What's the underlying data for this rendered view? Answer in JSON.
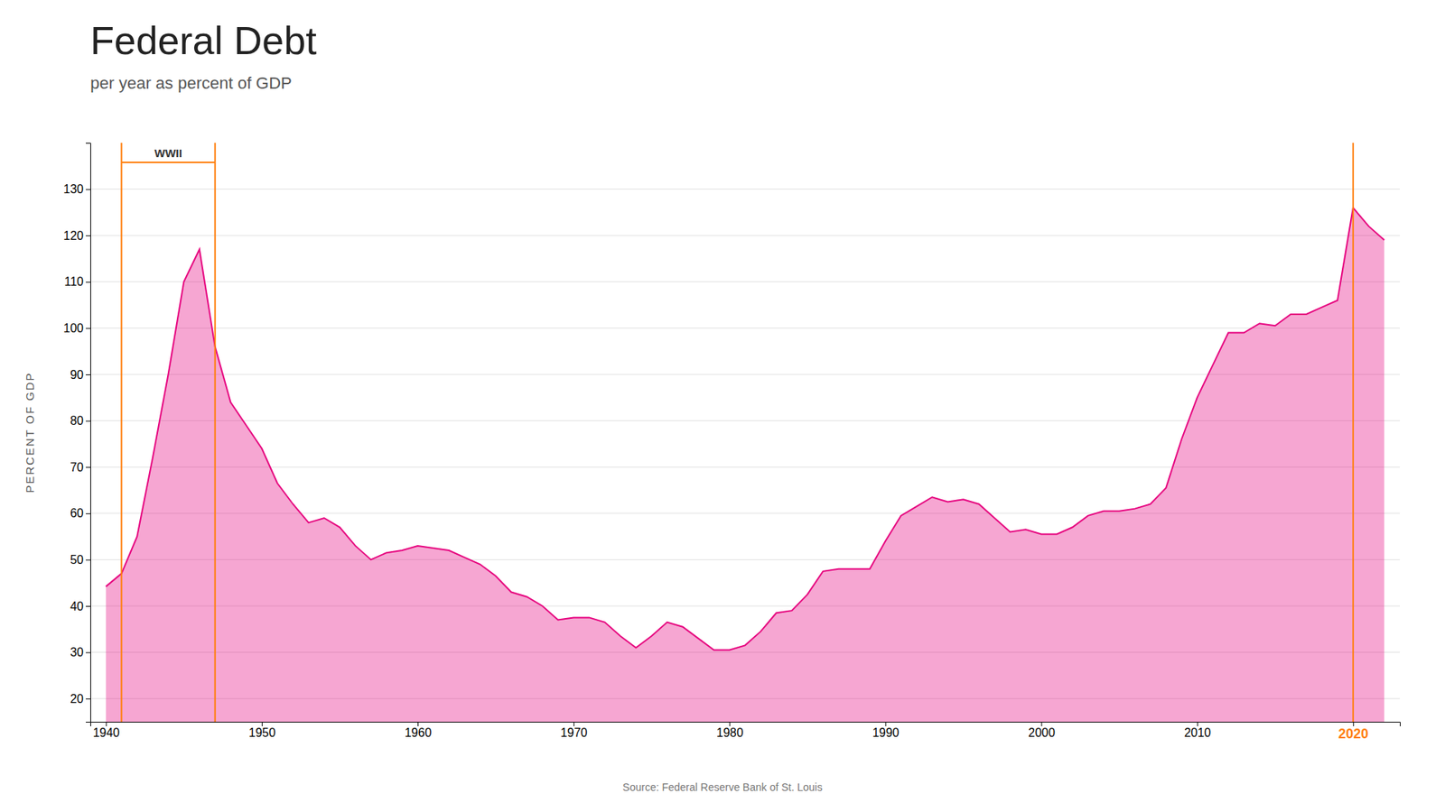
{
  "chart_data": {
    "type": "area",
    "title": "Federal Debt",
    "subtitle": "per year as percent of GDP",
    "y_label": "PERCENT OF GDP",
    "source": "Source: Federal Reserve Bank of St. Louis",
    "x": [
      1940,
      1941,
      1942,
      1943,
      1944,
      1945,
      1946,
      1947,
      1948,
      1949,
      1950,
      1951,
      1952,
      1953,
      1954,
      1955,
      1956,
      1957,
      1958,
      1959,
      1960,
      1961,
      1962,
      1963,
      1964,
      1965,
      1966,
      1967,
      1968,
      1969,
      1970,
      1971,
      1972,
      1973,
      1974,
      1975,
      1976,
      1977,
      1978,
      1979,
      1980,
      1981,
      1982,
      1983,
      1984,
      1985,
      1986,
      1987,
      1988,
      1989,
      1990,
      1991,
      1992,
      1993,
      1994,
      1995,
      1996,
      1997,
      1998,
      1999,
      2000,
      2001,
      2002,
      2003,
      2004,
      2005,
      2006,
      2007,
      2008,
      2009,
      2010,
      2011,
      2012,
      2013,
      2014,
      2015,
      2016,
      2017,
      2018,
      2019,
      2020,
      2021,
      2022
    ],
    "values": [
      44.2,
      47.0,
      55.0,
      72.0,
      90.0,
      110.0,
      117.0,
      96.0,
      84.0,
      79.0,
      74.0,
      66.5,
      62.0,
      58.0,
      59.0,
      57.0,
      53.0,
      50.0,
      51.5,
      52.0,
      53.0,
      52.5,
      52.0,
      50.5,
      49.0,
      46.5,
      43.0,
      42.0,
      40.0,
      37.0,
      37.5,
      37.5,
      36.5,
      33.5,
      31.0,
      33.5,
      36.5,
      35.5,
      33.0,
      30.5,
      30.5,
      31.5,
      34.5,
      38.5,
      39.0,
      42.5,
      47.5,
      48.0,
      48.0,
      48.0,
      54.0,
      59.5,
      61.5,
      63.5,
      62.5,
      63.0,
      62.0,
      59.0,
      56.0,
      56.5,
      55.5,
      55.5,
      57.0,
      59.5,
      60.5,
      60.5,
      61.0,
      62.0,
      65.5,
      76.0,
      85.0,
      92.0,
      99.0,
      99.0,
      101.0,
      100.5,
      103.0,
      103.0,
      104.5,
      106.0,
      126.0,
      122.0,
      119.0
    ],
    "color": "#e6007e",
    "xlim": [
      1939,
      2023
    ],
    "ylim": [
      15,
      140
    ],
    "xticks": [
      1940,
      1950,
      1960,
      1970,
      1980,
      1990,
      2000,
      2010,
      2020
    ],
    "yticks": [
      20,
      30,
      40,
      50,
      60,
      70,
      80,
      90,
      100,
      110,
      120,
      130
    ],
    "grid": true,
    "annotations": [
      {
        "text": "WWII",
        "x_start": 1941,
        "x_end": 1947
      },
      {
        "x": 2020
      }
    ]
  }
}
